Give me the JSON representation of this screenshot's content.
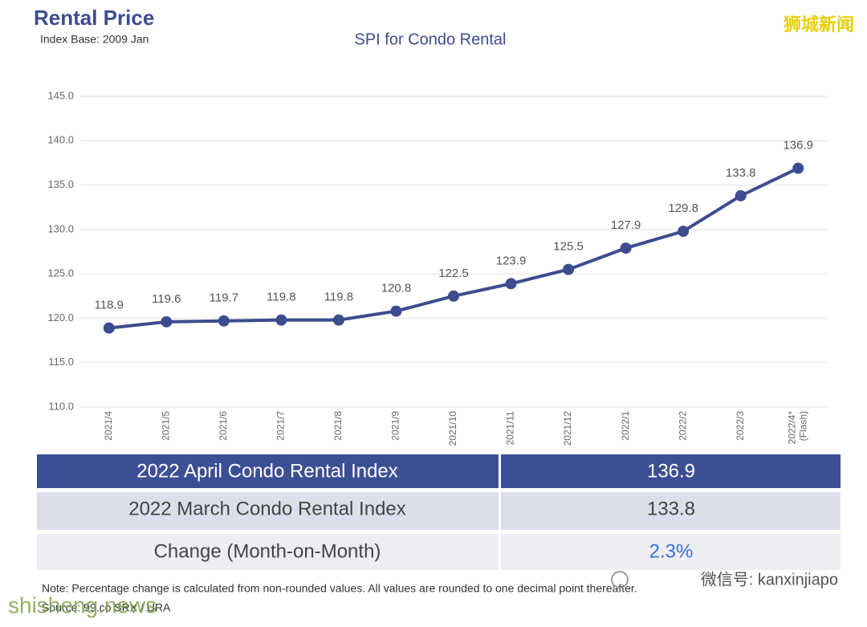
{
  "header": {
    "title": "Rental Price",
    "subtitle": "Index Base: 2009 Jan"
  },
  "chart_data": {
    "type": "line",
    "title": "SPI for Condo Rental",
    "categories": [
      "2021/4",
      "2021/5",
      "2021/6",
      "2021/7",
      "2021/8",
      "2021/9",
      "2021/10",
      "2021/11",
      "2021/12",
      "2022/1",
      "2022/2",
      "2022/3",
      "2022/4*"
    ],
    "last_category_note": "(Flash)",
    "series": [
      {
        "name": "SPI for Condo Rental",
        "color": "#3d4c8f",
        "values": [
          118.9,
          119.6,
          119.7,
          119.8,
          119.8,
          120.8,
          122.5,
          123.9,
          125.5,
          127.9,
          129.8,
          133.8,
          136.9
        ]
      }
    ],
    "ylim": [
      110,
      145
    ],
    "yticks": [
      {
        "value": 110,
        "label": "110.0"
      },
      {
        "value": 115,
        "label": "115.0"
      },
      {
        "value": 120,
        "label": "120.0"
      },
      {
        "value": 125,
        "label": "125.0"
      },
      {
        "value": 130,
        "label": "130.0"
      },
      {
        "value": 135,
        "label": "135.0"
      },
      {
        "value": 140,
        "label": "140.0"
      },
      {
        "value": 145,
        "label": "145.0"
      }
    ],
    "grid": true
  },
  "table": {
    "rows": [
      [
        "2022 April Condo Rental Index",
        136.9
      ],
      [
        "2022 March Condo Rental Index",
        133.8
      ],
      [
        "Change (Month-on-Month)",
        "2.3%"
      ]
    ]
  },
  "footer": {
    "note": "Note: Percentage change is calculated from non-rounded values.  All values are rounded to one decimal point thereafter.",
    "source": "Source: 99.co SRX / URA"
  },
  "watermarks": {
    "top": "狮城新闻",
    "wechat": "微信号: kanxinjiapo",
    "site": "shisheng.news"
  }
}
